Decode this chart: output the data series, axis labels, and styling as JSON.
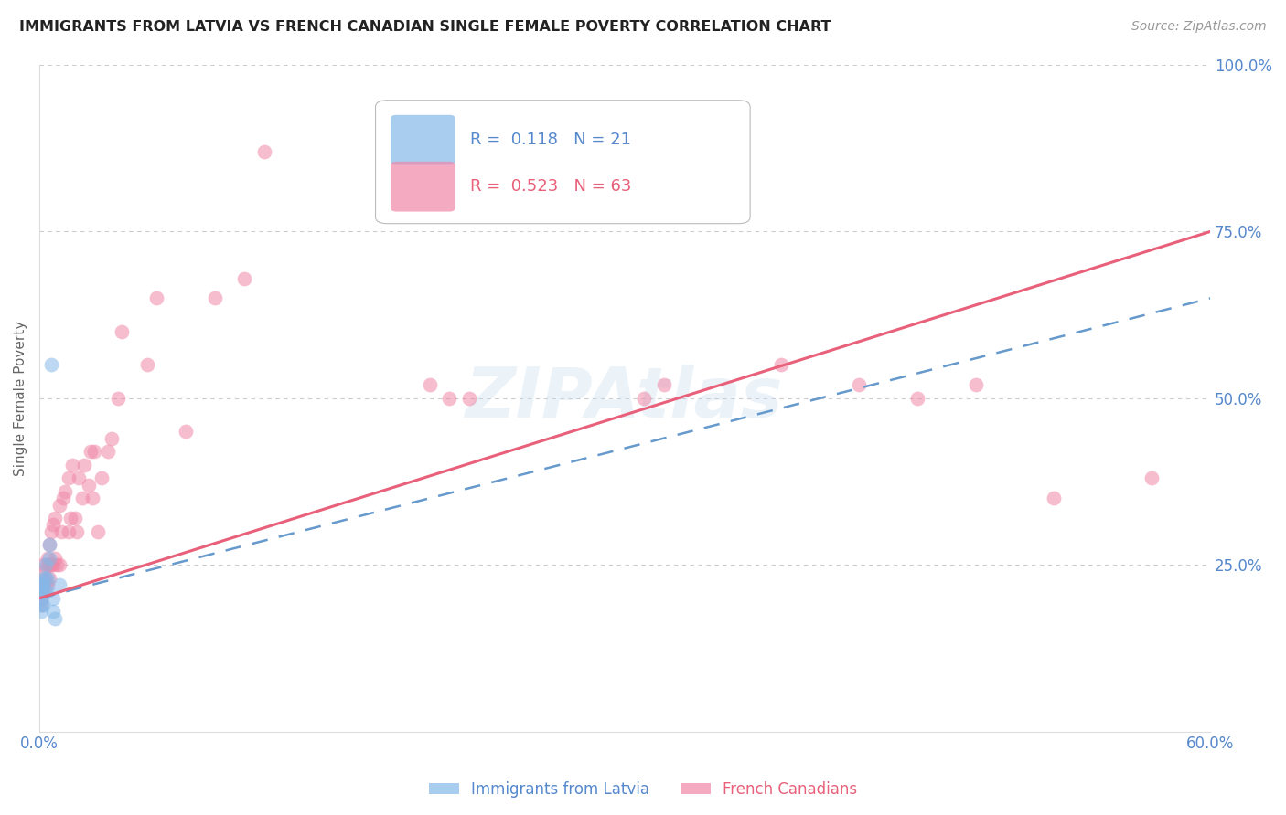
{
  "title": "IMMIGRANTS FROM LATVIA VS FRENCH CANADIAN SINGLE FEMALE POVERTY CORRELATION CHART",
  "source": "Source: ZipAtlas.com",
  "ylabel": "Single Female Poverty",
  "xlim": [
    0.0,
    0.6
  ],
  "ylim": [
    0.0,
    1.0
  ],
  "R_latvia": 0.118,
  "N_latvia": 21,
  "R_french": 0.523,
  "N_french": 63,
  "latvia_color": "#85b8e8",
  "french_color": "#f088a8",
  "latvia_line_color": "#6699cc",
  "french_line_color": "#e8607a",
  "background_color": "#ffffff",
  "grid_color": "#cccccc",
  "title_color": "#222222",
  "axis_label_color": "#666666",
  "tick_label_color": "#5588cc",
  "watermark": "ZIPAtlas",
  "legend_label_latvia": "Immigrants from Latvia",
  "legend_label_french": "French Canadians",
  "latvia_x": [
    0.001,
    0.001,
    0.001,
    0.001,
    0.001,
    0.002,
    0.002,
    0.002,
    0.002,
    0.003,
    0.003,
    0.003,
    0.004,
    0.004,
    0.005,
    0.005,
    0.006,
    0.007,
    0.007,
    0.008,
    0.01
  ],
  "latvia_y": [
    0.22,
    0.21,
    0.2,
    0.19,
    0.18,
    0.23,
    0.22,
    0.21,
    0.19,
    0.25,
    0.23,
    0.21,
    0.23,
    0.21,
    0.28,
    0.26,
    0.55,
    0.2,
    0.18,
    0.17,
    0.22
  ],
  "french_x": [
    0.001,
    0.001,
    0.001,
    0.001,
    0.002,
    0.002,
    0.002,
    0.003,
    0.003,
    0.004,
    0.004,
    0.004,
    0.005,
    0.005,
    0.005,
    0.006,
    0.006,
    0.007,
    0.007,
    0.008,
    0.008,
    0.009,
    0.01,
    0.01,
    0.011,
    0.012,
    0.013,
    0.015,
    0.015,
    0.016,
    0.017,
    0.018,
    0.019,
    0.02,
    0.022,
    0.023,
    0.025,
    0.026,
    0.027,
    0.028,
    0.03,
    0.032,
    0.035,
    0.037,
    0.04,
    0.042,
    0.055,
    0.06,
    0.075,
    0.09,
    0.105,
    0.115,
    0.2,
    0.21,
    0.22,
    0.31,
    0.32,
    0.38,
    0.42,
    0.45,
    0.48,
    0.52,
    0.57
  ],
  "french_y": [
    0.22,
    0.21,
    0.2,
    0.19,
    0.25,
    0.24,
    0.22,
    0.23,
    0.22,
    0.26,
    0.25,
    0.22,
    0.28,
    0.25,
    0.23,
    0.3,
    0.25,
    0.31,
    0.25,
    0.32,
    0.26,
    0.25,
    0.34,
    0.25,
    0.3,
    0.35,
    0.36,
    0.38,
    0.3,
    0.32,
    0.4,
    0.32,
    0.3,
    0.38,
    0.35,
    0.4,
    0.37,
    0.42,
    0.35,
    0.42,
    0.3,
    0.38,
    0.42,
    0.44,
    0.5,
    0.6,
    0.55,
    0.65,
    0.45,
    0.65,
    0.68,
    0.87,
    0.52,
    0.5,
    0.5,
    0.5,
    0.52,
    0.55,
    0.52,
    0.5,
    0.52,
    0.35,
    0.38
  ]
}
